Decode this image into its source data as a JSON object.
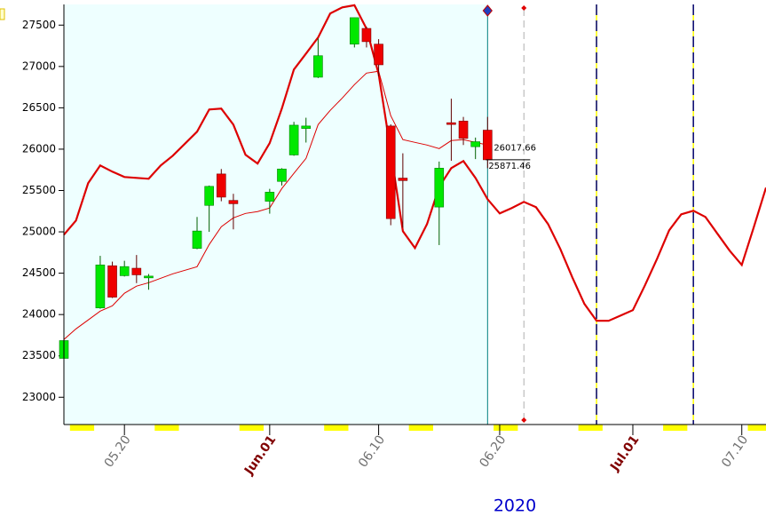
{
  "chart_data": {
    "type": "candlestick",
    "xlim": [
      "2020-05-15",
      "2020-07-12"
    ],
    "ylim": [
      22670,
      27750
    ],
    "yticks": [
      23000,
      23500,
      24000,
      24500,
      25000,
      25500,
      26000,
      26500,
      27000,
      27500
    ],
    "xticks": [
      {
        "value": "2020-05-20",
        "label": "05.20"
      },
      {
        "value": "2020-06-01",
        "label": "Jun.01"
      },
      {
        "value": "2020-06-10",
        "label": "06.10"
      },
      {
        "value": "2020-06-20",
        "label": "06.20"
      },
      {
        "value": "2020-07-01",
        "label": "Jul.01"
      },
      {
        "value": "2020-07-10",
        "label": "07.10"
      }
    ],
    "xlabel": "2020",
    "up_color": "#00e800",
    "down_color": "#ee0000",
    "current_date": "2020-06-19",
    "shade_color": "#eeffff",
    "x": [
      "2020-05-15",
      "2020-05-18",
      "2020-05-19",
      "2020-05-20",
      "2020-05-21",
      "2020-05-22",
      "2020-05-26",
      "2020-05-27",
      "2020-05-28",
      "2020-05-29",
      "2020-06-01",
      "2020-06-02",
      "2020-06-03",
      "2020-06-04",
      "2020-06-05",
      "2020-06-08",
      "2020-06-09",
      "2020-06-10",
      "2020-06-11",
      "2020-06-12",
      "2020-06-15",
      "2020-06-16",
      "2020-06-17",
      "2020-06-18",
      "2020-06-19"
    ],
    "open": [
      23470,
      24080,
      24590,
      24470,
      24560,
      24450,
      24800,
      25320,
      25700,
      25380,
      25370,
      25610,
      25930,
      26250,
      26870,
      27270,
      27460,
      27270,
      26280,
      25650,
      25300,
      26320,
      26340,
      26030,
      26230
    ],
    "high": [
      23690,
      24710,
      24640,
      24650,
      24720,
      24490,
      25180,
      25560,
      25760,
      25460,
      25520,
      25770,
      26330,
      26380,
      27340,
      27590,
      27480,
      27330,
      26300,
      25950,
      25850,
      26610,
      26390,
      26140,
      26390
    ],
    "low": [
      23360,
      24070,
      24200,
      24460,
      24380,
      24300,
      24790,
      25000,
      25370,
      25030,
      25220,
      25560,
      25920,
      26080,
      26860,
      27230,
      27230,
      26880,
      25080,
      25050,
      24840,
      25860,
      26050,
      25880,
      25770
    ],
    "close": [
      23685,
      24600,
      24210,
      24580,
      24480,
      24465,
      25010,
      25550,
      25420,
      25340,
      25480,
      25760,
      26290,
      26280,
      27130,
      27590,
      27300,
      27020,
      25160,
      25620,
      25770,
      26310,
      26130,
      26090,
      25871.46
    ],
    "lines": [
      {
        "color": "#dd0000",
        "width": 2.2,
        "x": [
          "2020-05-15",
          "2020-05-16",
          "2020-05-17",
          "2020-05-18",
          "2020-05-19",
          "2020-05-20",
          "2020-05-21",
          "2020-05-22",
          "2020-05-23",
          "2020-05-24",
          "2020-05-26",
          "2020-05-27",
          "2020-05-28",
          "2020-05-29",
          "2020-05-30",
          "2020-05-31",
          "2020-06-01",
          "2020-06-02",
          "2020-06-03",
          "2020-06-04",
          "2020-06-05",
          "2020-06-06",
          "2020-06-07",
          "2020-06-08",
          "2020-06-09",
          "2020-06-10",
          "2020-06-11",
          "2020-06-12",
          "2020-06-13",
          "2020-06-14",
          "2020-06-15",
          "2020-06-16",
          "2020-06-17",
          "2020-06-18",
          "2020-06-19",
          "2020-06-20",
          "2020-06-21",
          "2020-06-22",
          "2020-06-23",
          "2020-06-24",
          "2020-06-25",
          "2020-06-26",
          "2020-06-27",
          "2020-06-28",
          "2020-06-29",
          "2020-06-30",
          "2020-07-01",
          "2020-07-02",
          "2020-07-03",
          "2020-07-04",
          "2020-07-05",
          "2020-07-06",
          "2020-07-07",
          "2020-07-08",
          "2020-07-09",
          "2020-07-10",
          "2020-07-11",
          "2020-07-12"
        ],
        "values": [
          24965,
          25137,
          25588,
          25803,
          25728,
          25663,
          25653,
          25642,
          25803,
          25921,
          26211,
          26480,
          26490,
          26297,
          25932,
          25825,
          26072,
          26490,
          26963,
          27156,
          27350,
          27640,
          27715,
          27740,
          27457,
          26909,
          25975,
          25008,
          24804,
          25094,
          25545,
          25771,
          25857,
          25653,
          25395,
          25223,
          25288,
          25363,
          25298,
          25094,
          24794,
          24450,
          24128,
          23924,
          23924,
          23988,
          24053,
          24353,
          24675,
          25019,
          25212,
          25255,
          25180,
          24976,
          24772,
          24600,
          25062,
          25534
        ]
      },
      {
        "color": "#dd0000",
        "width": 1,
        "x": [
          "2020-05-15",
          "2020-05-16",
          "2020-05-17",
          "2020-05-18",
          "2020-05-19",
          "2020-05-20",
          "2020-05-21",
          "2020-05-22",
          "2020-05-23",
          "2020-05-24",
          "2020-05-26",
          "2020-05-27",
          "2020-05-28",
          "2020-05-29",
          "2020-05-30",
          "2020-05-31",
          "2020-06-01",
          "2020-06-02",
          "2020-06-03",
          "2020-06-04",
          "2020-06-05",
          "2020-06-06",
          "2020-06-07",
          "2020-06-08",
          "2020-06-09",
          "2020-06-10",
          "2020-06-11",
          "2020-06-12",
          "2020-06-13",
          "2020-06-14",
          "2020-06-15",
          "2020-06-16",
          "2020-06-17",
          "2020-06-18",
          "2020-06-19"
        ],
        "values": [
          23698,
          23827,
          23934,
          24042,
          24106,
          24257,
          24343,
          24385,
          24439,
          24493,
          24579,
          24847,
          25062,
          25169,
          25223,
          25245,
          25288,
          25524,
          25707,
          25889,
          26297,
          26469,
          26619,
          26780,
          26920,
          26942,
          26405,
          26115,
          26082,
          26050,
          26007,
          26104,
          26115,
          26082,
          26050
        ]
      }
    ],
    "price_labels": [
      26017.66,
      25871.46
    ],
    "vlines": [
      {
        "date": "2020-06-22",
        "color": "#b0b0b0"
      },
      {
        "date": "2020-06-28",
        "color": "#000080"
      },
      {
        "date": "2020-07-06",
        "color": "#000080"
      }
    ]
  }
}
